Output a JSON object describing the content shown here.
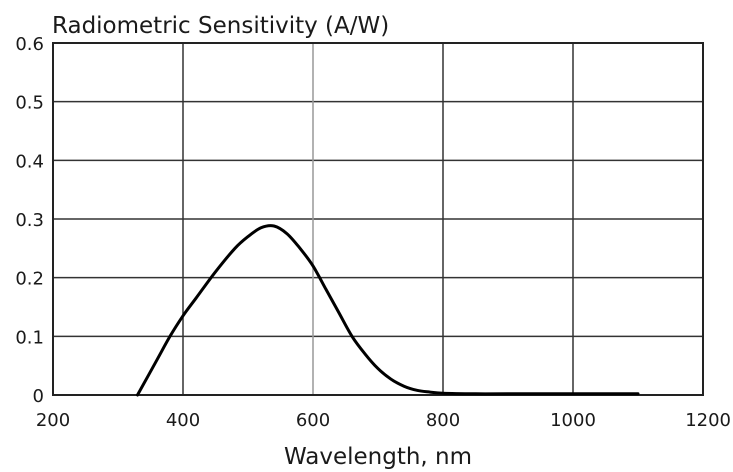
{
  "chart_data": {
    "type": "line",
    "title": "Radiometric Sensitivity (A/W)",
    "xlabel": "Wavelength, nm",
    "ylabel": "",
    "xlim": [
      200,
      1200
    ],
    "ylim": [
      0,
      0.6
    ],
    "x_ticks": [
      "200",
      "400",
      "600",
      "800",
      "1000",
      "1200"
    ],
    "y_ticks": [
      "0",
      "0.1",
      "0.2",
      "0.3",
      "0.4",
      "0.5",
      "0.6"
    ],
    "grid": true,
    "series": [
      {
        "x": [
          330,
          360,
          380,
          400,
          420,
          450,
          480,
          500,
          520,
          540,
          560,
          580,
          600,
          620,
          640,
          660,
          680,
          700,
          720,
          740,
          760,
          780,
          800,
          850,
          900,
          1000,
          1100
        ],
        "y": [
          0.0,
          0.06,
          0.1,
          0.135,
          0.165,
          0.21,
          0.25,
          0.27,
          0.285,
          0.288,
          0.275,
          0.25,
          0.22,
          0.18,
          0.14,
          0.1,
          0.07,
          0.045,
          0.027,
          0.015,
          0.008,
          0.005,
          0.003,
          0.002,
          0.002,
          0.002,
          0.002
        ]
      }
    ]
  }
}
